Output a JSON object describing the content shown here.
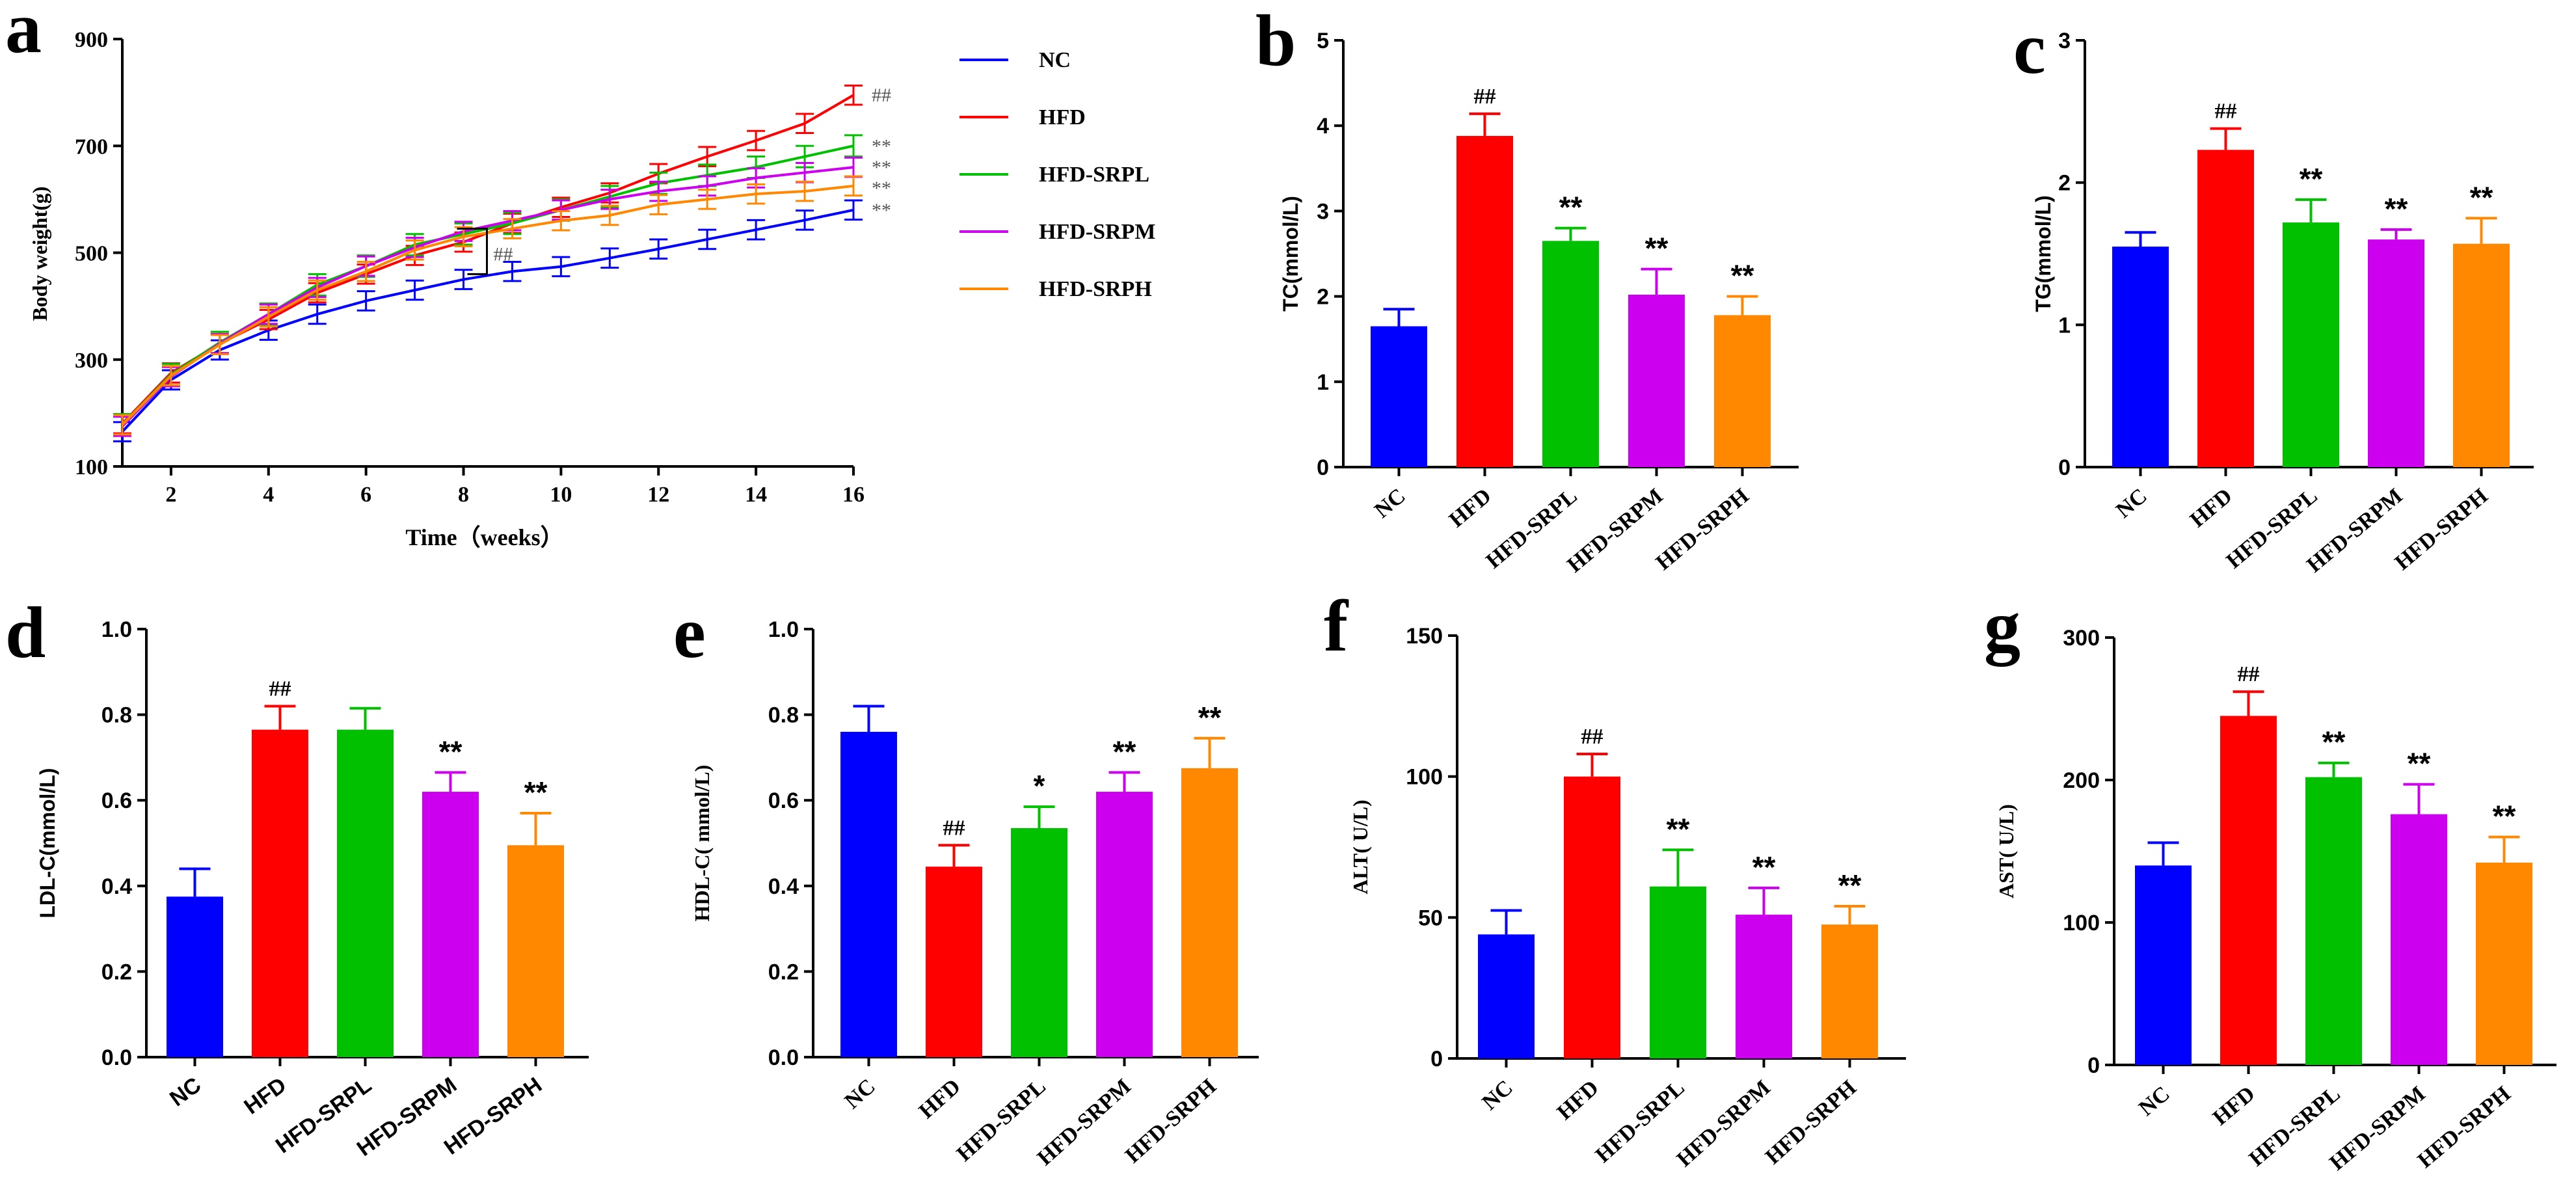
{
  "colors": {
    "NC": "#0000ff",
    "HFD": "#ff0000",
    "HFD-SRPL": "#00c000",
    "HFD-SRPM": "#cc00ee",
    "HFD-SRPH": "#ff8800",
    "axis": "#000000"
  },
  "chart_data": [
    {
      "id": "a",
      "panel_label": "a",
      "type": "line",
      "xlabel": "Time（weeks）",
      "ylabel": "Body weight(g)",
      "xlim": [
        1,
        16
      ],
      "ylim": [
        100,
        900
      ],
      "xticks": [
        2,
        4,
        6,
        8,
        10,
        12,
        14,
        16
      ],
      "yticks": [
        100,
        300,
        500,
        700,
        900
      ],
      "x": [
        1,
        2,
        3,
        4,
        5,
        6,
        7,
        8,
        9,
        10,
        11,
        12,
        13,
        14,
        15,
        16
      ],
      "series": [
        {
          "name": "NC",
          "values": [
            165,
            262,
            318,
            355,
            385,
            410,
            430,
            450,
            465,
            474,
            490,
            507,
            525,
            543,
            561,
            580
          ],
          "err": 18,
          "marker": "**"
        },
        {
          "name": "HFD",
          "values": [
            180,
            275,
            330,
            375,
            425,
            460,
            495,
            520,
            555,
            585,
            612,
            648,
            680,
            710,
            742,
            795
          ],
          "err": 18,
          "marker": "##"
        },
        {
          "name": "HFD-SRPL",
          "values": [
            178,
            272,
            332,
            385,
            440,
            475,
            515,
            535,
            555,
            580,
            605,
            630,
            645,
            660,
            680,
            700
          ],
          "err": 20,
          "marker": "**"
        },
        {
          "name": "HFD-SRPM",
          "values": [
            175,
            268,
            330,
            385,
            435,
            475,
            510,
            540,
            560,
            580,
            600,
            615,
            625,
            640,
            650,
            660
          ],
          "err": 18,
          "marker": "**"
        },
        {
          "name": "HFD-SRPH",
          "values": [
            178,
            270,
            328,
            380,
            430,
            465,
            505,
            530,
            545,
            560,
            570,
            590,
            600,
            610,
            615,
            625
          ],
          "err": 18,
          "marker": "**"
        }
      ],
      "bracket_label": "##",
      "legend": [
        "NC",
        "HFD",
        "HFD-SRPL",
        "HFD-SRPM",
        "HFD-SRPH"
      ],
      "legend_position": "top-right (outside)"
    },
    {
      "id": "b",
      "panel_label": "b",
      "type": "bar",
      "ylabel": "TC(mmol/L)",
      "ylabel_font": "sans",
      "ylim": [
        0,
        5
      ],
      "yticks": [
        0,
        1,
        2,
        3,
        4,
        5
      ],
      "ytick_labels": [
        "0",
        "1",
        "2",
        "3",
        "4",
        "5"
      ],
      "categories": [
        "NC",
        "HFD",
        "HFD-SRPL",
        "HFD-SRPM",
        "HFD-SRPH"
      ],
      "xtick_font": "serif",
      "values": [
        1.65,
        3.88,
        2.65,
        2.02,
        1.78
      ],
      "errors": [
        0.2,
        0.26,
        0.15,
        0.3,
        0.22
      ],
      "significance": [
        "",
        "##",
        "**",
        "**",
        "**"
      ]
    },
    {
      "id": "c",
      "panel_label": "c",
      "type": "bar",
      "ylabel": "TG(mmol/L)",
      "ylabel_font": "sans",
      "ylim": [
        0,
        3
      ],
      "yticks": [
        0,
        1,
        2,
        3
      ],
      "ytick_labels": [
        "0",
        "1",
        "2",
        "3"
      ],
      "categories": [
        "NC",
        "HFD",
        "HFD-SRPL",
        "HFD-SRPM",
        "HFD-SRPH"
      ],
      "xtick_font": "serif",
      "values": [
        1.55,
        2.23,
        1.72,
        1.6,
        1.57
      ],
      "errors": [
        0.1,
        0.15,
        0.16,
        0.07,
        0.18
      ],
      "significance": [
        "",
        "##",
        "**",
        "**",
        "**"
      ]
    },
    {
      "id": "d",
      "panel_label": "d",
      "type": "bar",
      "ylabel": "LDL-C(mmol/L)",
      "ylabel_font": "sans",
      "ylim": [
        0,
        1
      ],
      "yticks": [
        0,
        0.2,
        0.4,
        0.6,
        0.8,
        1.0
      ],
      "ytick_labels": [
        "0.0",
        "0.2",
        "0.4",
        "0.6",
        "0.8",
        "1.0"
      ],
      "categories": [
        "NC",
        "HFD",
        "HFD-SRPL",
        "HFD-SRPM",
        "HFD-SRPH"
      ],
      "xtick_font": "sans",
      "values": [
        0.375,
        0.765,
        0.765,
        0.62,
        0.495
      ],
      "errors": [
        0.065,
        0.055,
        0.05,
        0.045,
        0.075
      ],
      "significance": [
        "",
        "##",
        "",
        "**",
        "**"
      ]
    },
    {
      "id": "e",
      "panel_label": "e",
      "type": "bar",
      "ylabel": "HDL-C( mmol/L)",
      "ylabel_font": "serif",
      "ylim": [
        0,
        1
      ],
      "yticks": [
        0,
        0.2,
        0.4,
        0.6,
        0.8,
        1.0
      ],
      "ytick_labels": [
        "0.0",
        "0.2",
        "0.4",
        "0.6",
        "0.8",
        "1.0"
      ],
      "categories": [
        "NC",
        "HFD",
        "HFD-SRPL",
        "HFD-SRPM",
        "HFD-SRPH"
      ],
      "xtick_font": "serif",
      "values": [
        0.76,
        0.445,
        0.535,
        0.62,
        0.675
      ],
      "errors": [
        0.06,
        0.05,
        0.05,
        0.045,
        0.07
      ],
      "significance": [
        "",
        "##",
        "*",
        "**",
        "**"
      ]
    },
    {
      "id": "f",
      "panel_label": "f",
      "type": "bar",
      "ylabel": "ALT( U/L)",
      "ylabel_font": "serif",
      "ylim": [
        0,
        150
      ],
      "yticks": [
        0,
        50,
        100,
        150
      ],
      "ytick_labels": [
        "0",
        "50",
        "100",
        "150"
      ],
      "categories": [
        "NC",
        "HFD",
        "HFD-SRPL",
        "HFD-SRPM",
        "HFD-SRPH"
      ],
      "xtick_font": "serif",
      "values": [
        44,
        100,
        61,
        51,
        47.5
      ],
      "errors": [
        8.5,
        8,
        13,
        9.5,
        6.5
      ],
      "significance": [
        "",
        "##",
        "**",
        "**",
        "**"
      ]
    },
    {
      "id": "g",
      "panel_label": "g",
      "type": "bar",
      "ylabel": "AST( U/L)",
      "ylabel_font": "serif",
      "ylim": [
        0,
        300
      ],
      "yticks": [
        0,
        100,
        200,
        300
      ],
      "ytick_labels": [
        "0",
        "100",
        "200",
        "300"
      ],
      "categories": [
        "NC",
        "HFD",
        "HFD-SRPL",
        "HFD-SRPM",
        "HFD-SRPH"
      ],
      "xtick_font": "serif",
      "values": [
        140,
        245,
        202,
        176,
        142
      ],
      "errors": [
        16,
        17,
        10,
        21,
        18
      ],
      "significance": [
        "",
        "##",
        "**",
        "**",
        "**"
      ]
    }
  ]
}
